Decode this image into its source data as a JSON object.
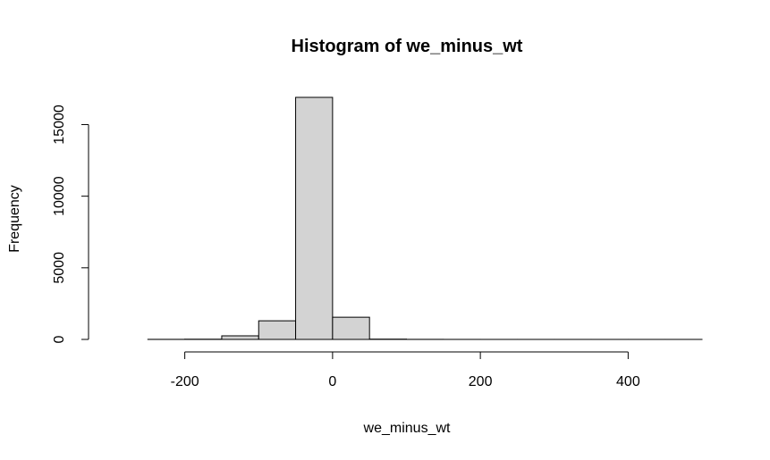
{
  "chart_data": {
    "type": "bar",
    "title": "Histogram of we_minus_wt",
    "xlabel": "we_minus_wt",
    "ylabel": "Frequency",
    "x_ticks": [
      -200,
      0,
      200,
      400
    ],
    "y_ticks": [
      0,
      5000,
      10000,
      15000
    ],
    "bins": [
      {
        "from": -250,
        "to": -200,
        "count": 5
      },
      {
        "from": -200,
        "to": -150,
        "count": 15
      },
      {
        "from": -150,
        "to": -100,
        "count": 250
      },
      {
        "from": -100,
        "to": -50,
        "count": 1300
      },
      {
        "from": -50,
        "to": 0,
        "count": 16900
      },
      {
        "from": 0,
        "to": 50,
        "count": 1550
      },
      {
        "from": 50,
        "to": 100,
        "count": 20
      },
      {
        "from": 100,
        "to": 150,
        "count": 5
      },
      {
        "from": 150,
        "to": 200,
        "count": 2
      },
      {
        "from": 200,
        "to": 250,
        "count": 1
      },
      {
        "from": 250,
        "to": 300,
        "count": 1
      },
      {
        "from": 300,
        "to": 350,
        "count": 1
      },
      {
        "from": 350,
        "to": 400,
        "count": 1
      },
      {
        "from": 400,
        "to": 450,
        "count": 1
      },
      {
        "from": 450,
        "to": 500,
        "count": 1
      }
    ],
    "x_range": [
      -300,
      500
    ],
    "y_range": [
      0,
      16900
    ],
    "bar_fill": "#d3d3d3",
    "bar_stroke": "#000000",
    "grid": false,
    "legend": "none"
  }
}
